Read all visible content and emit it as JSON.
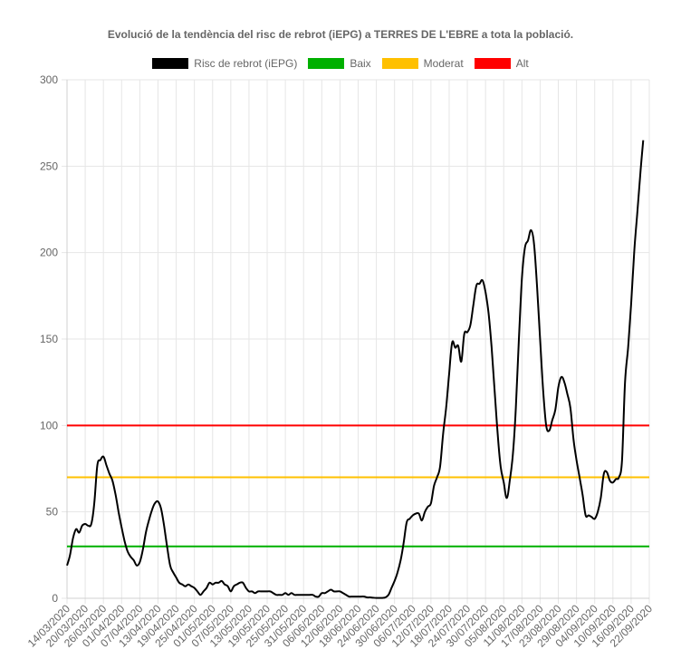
{
  "chart_data": {
    "type": "line",
    "title": "Evolució de la tendència del risc de rebrot (iEPG) a TERRES DE L'EBRE a tota la població.",
    "xlabel": "",
    "ylabel": "",
    "ylim": [
      0,
      300
    ],
    "yticks": [
      0,
      50,
      100,
      150,
      200,
      250,
      300
    ],
    "grid": true,
    "legend_position": "top",
    "x_tick_labels": [
      "14/03/2020",
      "20/03/2020",
      "26/03/2020",
      "01/04/2020",
      "07/04/2020",
      "13/04/2020",
      "19/04/2020",
      "25/04/2020",
      "01/05/2020",
      "07/05/2020",
      "13/05/2020",
      "19/05/2020",
      "25/05/2020",
      "31/05/2020",
      "06/06/2020",
      "12/06/2020",
      "18/06/2020",
      "24/06/2020",
      "30/06/2020",
      "06/07/2020",
      "12/07/2020",
      "18/07/2020",
      "24/07/2020",
      "30/07/2020",
      "05/08/2020",
      "11/08/2020",
      "17/08/2020",
      "23/08/2020",
      "29/08/2020",
      "04/09/2020",
      "10/09/2020",
      "16/09/2020",
      "22/09/2020"
    ],
    "x_start": "14/03/2020",
    "x_end": "22/09/2020",
    "series": [
      {
        "name": "Risc de rebrot (iEPG)",
        "color": "#000000",
        "points": [
          [
            "14/03/2020",
            19
          ],
          [
            "15/03/2020",
            25
          ],
          [
            "16/03/2020",
            35
          ],
          [
            "17/03/2020",
            40
          ],
          [
            "18/03/2020",
            38
          ],
          [
            "19/03/2020",
            42
          ],
          [
            "20/03/2020",
            43
          ],
          [
            "21/03/2020",
            42
          ],
          [
            "22/03/2020",
            43
          ],
          [
            "23/03/2020",
            55
          ],
          [
            "24/03/2020",
            77
          ],
          [
            "25/03/2020",
            80
          ],
          [
            "26/03/2020",
            82
          ],
          [
            "27/03/2020",
            77
          ],
          [
            "28/03/2020",
            72
          ],
          [
            "29/03/2020",
            68
          ],
          [
            "30/03/2020",
            60
          ],
          [
            "31/03/2020",
            50
          ],
          [
            "01/04/2020",
            41
          ],
          [
            "02/04/2020",
            33
          ],
          [
            "03/04/2020",
            27
          ],
          [
            "04/04/2020",
            24
          ],
          [
            "05/04/2020",
            22
          ],
          [
            "06/04/2020",
            19
          ],
          [
            "07/04/2020",
            21
          ],
          [
            "08/04/2020",
            28
          ],
          [
            "09/04/2020",
            38
          ],
          [
            "10/04/2020",
            45
          ],
          [
            "11/04/2020",
            51
          ],
          [
            "12/04/2020",
            55
          ],
          [
            "13/04/2020",
            56
          ],
          [
            "14/04/2020",
            52
          ],
          [
            "15/04/2020",
            42
          ],
          [
            "16/04/2020",
            30
          ],
          [
            "17/04/2020",
            19
          ],
          [
            "18/04/2020",
            15
          ],
          [
            "19/04/2020",
            12
          ],
          [
            "20/04/2020",
            9
          ],
          [
            "21/04/2020",
            8
          ],
          [
            "22/04/2020",
            7
          ],
          [
            "23/04/2020",
            8
          ],
          [
            "24/04/2020",
            7
          ],
          [
            "25/04/2020",
            6
          ],
          [
            "26/04/2020",
            4
          ],
          [
            "27/04/2020",
            2
          ],
          [
            "28/04/2020",
            4
          ],
          [
            "29/04/2020",
            6
          ],
          [
            "30/04/2020",
            9
          ],
          [
            "01/05/2020",
            8
          ],
          [
            "02/05/2020",
            9
          ],
          [
            "03/05/2020",
            9
          ],
          [
            "04/05/2020",
            10
          ],
          [
            "05/05/2020",
            8
          ],
          [
            "06/05/2020",
            7
          ],
          [
            "07/05/2020",
            4
          ],
          [
            "08/05/2020",
            7
          ],
          [
            "09/05/2020",
            8
          ],
          [
            "10/05/2020",
            9
          ],
          [
            "11/05/2020",
            9
          ],
          [
            "12/05/2020",
            6
          ],
          [
            "13/05/2020",
            4
          ],
          [
            "14/05/2020",
            4
          ],
          [
            "15/05/2020",
            3
          ],
          [
            "16/05/2020",
            4
          ],
          [
            "17/05/2020",
            4
          ],
          [
            "18/05/2020",
            4
          ],
          [
            "19/05/2020",
            4
          ],
          [
            "20/05/2020",
            4
          ],
          [
            "21/05/2020",
            3
          ],
          [
            "22/05/2020",
            2
          ],
          [
            "23/05/2020",
            2
          ],
          [
            "24/05/2020",
            2
          ],
          [
            "25/05/2020",
            3
          ],
          [
            "26/05/2020",
            2
          ],
          [
            "27/05/2020",
            3
          ],
          [
            "28/05/2020",
            2
          ],
          [
            "29/05/2020",
            2
          ],
          [
            "30/05/2020",
            2
          ],
          [
            "31/05/2020",
            2
          ],
          [
            "01/06/2020",
            2
          ],
          [
            "02/06/2020",
            2
          ],
          [
            "03/06/2020",
            2
          ],
          [
            "04/06/2020",
            1
          ],
          [
            "05/06/2020",
            1
          ],
          [
            "06/06/2020",
            3
          ],
          [
            "07/06/2020",
            3
          ],
          [
            "08/06/2020",
            4
          ],
          [
            "09/06/2020",
            5
          ],
          [
            "10/06/2020",
            4
          ],
          [
            "11/06/2020",
            4
          ],
          [
            "12/06/2020",
            4
          ],
          [
            "13/06/2020",
            3
          ],
          [
            "14/06/2020",
            2
          ],
          [
            "15/06/2020",
            1
          ],
          [
            "16/06/2020",
            1
          ],
          [
            "17/06/2020",
            1
          ],
          [
            "18/06/2020",
            1
          ],
          [
            "19/06/2020",
            1
          ],
          [
            "20/06/2020",
            1
          ],
          [
            "21/06/2020",
            0.5
          ],
          [
            "22/06/2020",
            0.5
          ],
          [
            "23/06/2020",
            0.3
          ],
          [
            "24/06/2020",
            0.2
          ],
          [
            "25/06/2020",
            0.2
          ],
          [
            "26/06/2020",
            0.2
          ],
          [
            "27/06/2020",
            0.5
          ],
          [
            "28/06/2020",
            2
          ],
          [
            "29/06/2020",
            6
          ],
          [
            "30/06/2020",
            10
          ],
          [
            "01/07/2020",
            15
          ],
          [
            "02/07/2020",
            22
          ],
          [
            "03/07/2020",
            32
          ],
          [
            "04/07/2020",
            44
          ],
          [
            "05/07/2020",
            46
          ],
          [
            "06/07/2020",
            48
          ],
          [
            "07/07/2020",
            49
          ],
          [
            "08/07/2020",
            49
          ],
          [
            "09/07/2020",
            45
          ],
          [
            "10/07/2020",
            50
          ],
          [
            "11/07/2020",
            53
          ],
          [
            "12/07/2020",
            55
          ],
          [
            "13/07/2020",
            65
          ],
          [
            "14/07/2020",
            70
          ],
          [
            "15/07/2020",
            76
          ],
          [
            "16/07/2020",
            95
          ],
          [
            "17/07/2020",
            110
          ],
          [
            "18/07/2020",
            130
          ],
          [
            "19/07/2020",
            148
          ],
          [
            "20/07/2020",
            145
          ],
          [
            "21/07/2020",
            146
          ],
          [
            "22/07/2020",
            137
          ],
          [
            "23/07/2020",
            153
          ],
          [
            "24/07/2020",
            154
          ],
          [
            "25/07/2020",
            158
          ],
          [
            "26/07/2020",
            170
          ],
          [
            "27/07/2020",
            181
          ],
          [
            "28/07/2020",
            182
          ],
          [
            "29/07/2020",
            184
          ],
          [
            "30/07/2020",
            177
          ],
          [
            "31/07/2020",
            165
          ],
          [
            "01/08/2020",
            145
          ],
          [
            "02/08/2020",
            120
          ],
          [
            "03/08/2020",
            95
          ],
          [
            "04/08/2020",
            76
          ],
          [
            "05/08/2020",
            67
          ],
          [
            "06/08/2020",
            58
          ],
          [
            "07/08/2020",
            68
          ],
          [
            "08/08/2020",
            83
          ],
          [
            "09/08/2020",
            110
          ],
          [
            "10/08/2020",
            150
          ],
          [
            "11/08/2020",
            185
          ],
          [
            "12/08/2020",
            203
          ],
          [
            "13/08/2020",
            207
          ],
          [
            "14/08/2020",
            213
          ],
          [
            "15/08/2020",
            205
          ],
          [
            "16/08/2020",
            180
          ],
          [
            "17/08/2020",
            150
          ],
          [
            "18/08/2020",
            120
          ],
          [
            "19/08/2020",
            100
          ],
          [
            "20/08/2020",
            97
          ],
          [
            "21/08/2020",
            103
          ],
          [
            "22/08/2020",
            109
          ],
          [
            "23/08/2020",
            122
          ],
          [
            "24/08/2020",
            128
          ],
          [
            "25/08/2020",
            125
          ],
          [
            "26/08/2020",
            118
          ],
          [
            "27/08/2020",
            110
          ],
          [
            "28/08/2020",
            92
          ],
          [
            "29/08/2020",
            80
          ],
          [
            "30/08/2020",
            70
          ],
          [
            "31/08/2020",
            60
          ],
          [
            "01/09/2020",
            48
          ],
          [
            "02/09/2020",
            48
          ],
          [
            "03/09/2020",
            47
          ],
          [
            "04/09/2020",
            46
          ],
          [
            "05/09/2020",
            50
          ],
          [
            "06/09/2020",
            58
          ],
          [
            "07/09/2020",
            72
          ],
          [
            "08/09/2020",
            73
          ],
          [
            "09/09/2020",
            68
          ],
          [
            "10/09/2020",
            67
          ],
          [
            "11/09/2020",
            69
          ],
          [
            "12/09/2020",
            70
          ],
          [
            "13/09/2020",
            80
          ],
          [
            "14/09/2020",
            125
          ],
          [
            "15/09/2020",
            145
          ],
          [
            "16/09/2020",
            170
          ],
          [
            "17/09/2020",
            200
          ],
          [
            "18/09/2020",
            222
          ],
          [
            "19/09/2020",
            245
          ],
          [
            "20/09/2020",
            265
          ]
        ]
      },
      {
        "name": "Baix",
        "color": "#00b000",
        "constant": 30
      },
      {
        "name": "Moderat",
        "color": "#ffc000",
        "constant": 70
      },
      {
        "name": "Alt",
        "color": "#ff0000",
        "constant": 100
      }
    ]
  }
}
